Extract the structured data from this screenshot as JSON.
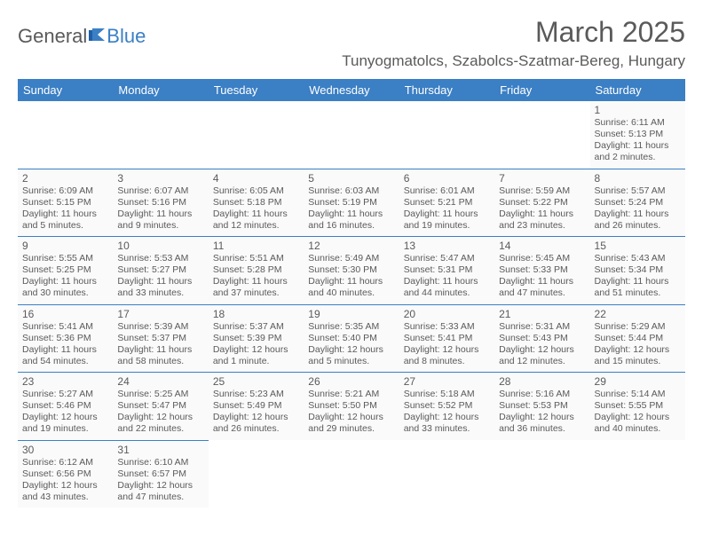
{
  "logo": {
    "part1": "General",
    "part2": "Blue"
  },
  "title": "March 2025",
  "location": "Tunyogmatolcs, Szabolcs-Szatmar-Bereg, Hungary",
  "colors": {
    "header_bg": "#3b7fc4",
    "header_text": "#ffffff",
    "text": "#5a5a5a",
    "cell_border": "#3b7fc4",
    "cell_bg": "#fafafa",
    "page_bg": "#ffffff"
  },
  "weekdays": [
    "Sunday",
    "Monday",
    "Tuesday",
    "Wednesday",
    "Thursday",
    "Friday",
    "Saturday"
  ],
  "weeks": [
    [
      null,
      null,
      null,
      null,
      null,
      null,
      {
        "n": "1",
        "sr": "Sunrise: 6:11 AM",
        "ss": "Sunset: 5:13 PM",
        "dl1": "Daylight: 11 hours",
        "dl2": "and 2 minutes."
      }
    ],
    [
      {
        "n": "2",
        "sr": "Sunrise: 6:09 AM",
        "ss": "Sunset: 5:15 PM",
        "dl1": "Daylight: 11 hours",
        "dl2": "and 5 minutes."
      },
      {
        "n": "3",
        "sr": "Sunrise: 6:07 AM",
        "ss": "Sunset: 5:16 PM",
        "dl1": "Daylight: 11 hours",
        "dl2": "and 9 minutes."
      },
      {
        "n": "4",
        "sr": "Sunrise: 6:05 AM",
        "ss": "Sunset: 5:18 PM",
        "dl1": "Daylight: 11 hours",
        "dl2": "and 12 minutes."
      },
      {
        "n": "5",
        "sr": "Sunrise: 6:03 AM",
        "ss": "Sunset: 5:19 PM",
        "dl1": "Daylight: 11 hours",
        "dl2": "and 16 minutes."
      },
      {
        "n": "6",
        "sr": "Sunrise: 6:01 AM",
        "ss": "Sunset: 5:21 PM",
        "dl1": "Daylight: 11 hours",
        "dl2": "and 19 minutes."
      },
      {
        "n": "7",
        "sr": "Sunrise: 5:59 AM",
        "ss": "Sunset: 5:22 PM",
        "dl1": "Daylight: 11 hours",
        "dl2": "and 23 minutes."
      },
      {
        "n": "8",
        "sr": "Sunrise: 5:57 AM",
        "ss": "Sunset: 5:24 PM",
        "dl1": "Daylight: 11 hours",
        "dl2": "and 26 minutes."
      }
    ],
    [
      {
        "n": "9",
        "sr": "Sunrise: 5:55 AM",
        "ss": "Sunset: 5:25 PM",
        "dl1": "Daylight: 11 hours",
        "dl2": "and 30 minutes."
      },
      {
        "n": "10",
        "sr": "Sunrise: 5:53 AM",
        "ss": "Sunset: 5:27 PM",
        "dl1": "Daylight: 11 hours",
        "dl2": "and 33 minutes."
      },
      {
        "n": "11",
        "sr": "Sunrise: 5:51 AM",
        "ss": "Sunset: 5:28 PM",
        "dl1": "Daylight: 11 hours",
        "dl2": "and 37 minutes."
      },
      {
        "n": "12",
        "sr": "Sunrise: 5:49 AM",
        "ss": "Sunset: 5:30 PM",
        "dl1": "Daylight: 11 hours",
        "dl2": "and 40 minutes."
      },
      {
        "n": "13",
        "sr": "Sunrise: 5:47 AM",
        "ss": "Sunset: 5:31 PM",
        "dl1": "Daylight: 11 hours",
        "dl2": "and 44 minutes."
      },
      {
        "n": "14",
        "sr": "Sunrise: 5:45 AM",
        "ss": "Sunset: 5:33 PM",
        "dl1": "Daylight: 11 hours",
        "dl2": "and 47 minutes."
      },
      {
        "n": "15",
        "sr": "Sunrise: 5:43 AM",
        "ss": "Sunset: 5:34 PM",
        "dl1": "Daylight: 11 hours",
        "dl2": "and 51 minutes."
      }
    ],
    [
      {
        "n": "16",
        "sr": "Sunrise: 5:41 AM",
        "ss": "Sunset: 5:36 PM",
        "dl1": "Daylight: 11 hours",
        "dl2": "and 54 minutes."
      },
      {
        "n": "17",
        "sr": "Sunrise: 5:39 AM",
        "ss": "Sunset: 5:37 PM",
        "dl1": "Daylight: 11 hours",
        "dl2": "and 58 minutes."
      },
      {
        "n": "18",
        "sr": "Sunrise: 5:37 AM",
        "ss": "Sunset: 5:39 PM",
        "dl1": "Daylight: 12 hours",
        "dl2": "and 1 minute."
      },
      {
        "n": "19",
        "sr": "Sunrise: 5:35 AM",
        "ss": "Sunset: 5:40 PM",
        "dl1": "Daylight: 12 hours",
        "dl2": "and 5 minutes."
      },
      {
        "n": "20",
        "sr": "Sunrise: 5:33 AM",
        "ss": "Sunset: 5:41 PM",
        "dl1": "Daylight: 12 hours",
        "dl2": "and 8 minutes."
      },
      {
        "n": "21",
        "sr": "Sunrise: 5:31 AM",
        "ss": "Sunset: 5:43 PM",
        "dl1": "Daylight: 12 hours",
        "dl2": "and 12 minutes."
      },
      {
        "n": "22",
        "sr": "Sunrise: 5:29 AM",
        "ss": "Sunset: 5:44 PM",
        "dl1": "Daylight: 12 hours",
        "dl2": "and 15 minutes."
      }
    ],
    [
      {
        "n": "23",
        "sr": "Sunrise: 5:27 AM",
        "ss": "Sunset: 5:46 PM",
        "dl1": "Daylight: 12 hours",
        "dl2": "and 19 minutes."
      },
      {
        "n": "24",
        "sr": "Sunrise: 5:25 AM",
        "ss": "Sunset: 5:47 PM",
        "dl1": "Daylight: 12 hours",
        "dl2": "and 22 minutes."
      },
      {
        "n": "25",
        "sr": "Sunrise: 5:23 AM",
        "ss": "Sunset: 5:49 PM",
        "dl1": "Daylight: 12 hours",
        "dl2": "and 26 minutes."
      },
      {
        "n": "26",
        "sr": "Sunrise: 5:21 AM",
        "ss": "Sunset: 5:50 PM",
        "dl1": "Daylight: 12 hours",
        "dl2": "and 29 minutes."
      },
      {
        "n": "27",
        "sr": "Sunrise: 5:18 AM",
        "ss": "Sunset: 5:52 PM",
        "dl1": "Daylight: 12 hours",
        "dl2": "and 33 minutes."
      },
      {
        "n": "28",
        "sr": "Sunrise: 5:16 AM",
        "ss": "Sunset: 5:53 PM",
        "dl1": "Daylight: 12 hours",
        "dl2": "and 36 minutes."
      },
      {
        "n": "29",
        "sr": "Sunrise: 5:14 AM",
        "ss": "Sunset: 5:55 PM",
        "dl1": "Daylight: 12 hours",
        "dl2": "and 40 minutes."
      }
    ],
    [
      {
        "n": "30",
        "sr": "Sunrise: 6:12 AM",
        "ss": "Sunset: 6:56 PM",
        "dl1": "Daylight: 12 hours",
        "dl2": "and 43 minutes."
      },
      {
        "n": "31",
        "sr": "Sunrise: 6:10 AM",
        "ss": "Sunset: 6:57 PM",
        "dl1": "Daylight: 12 hours",
        "dl2": "and 47 minutes."
      },
      null,
      null,
      null,
      null,
      null
    ]
  ]
}
